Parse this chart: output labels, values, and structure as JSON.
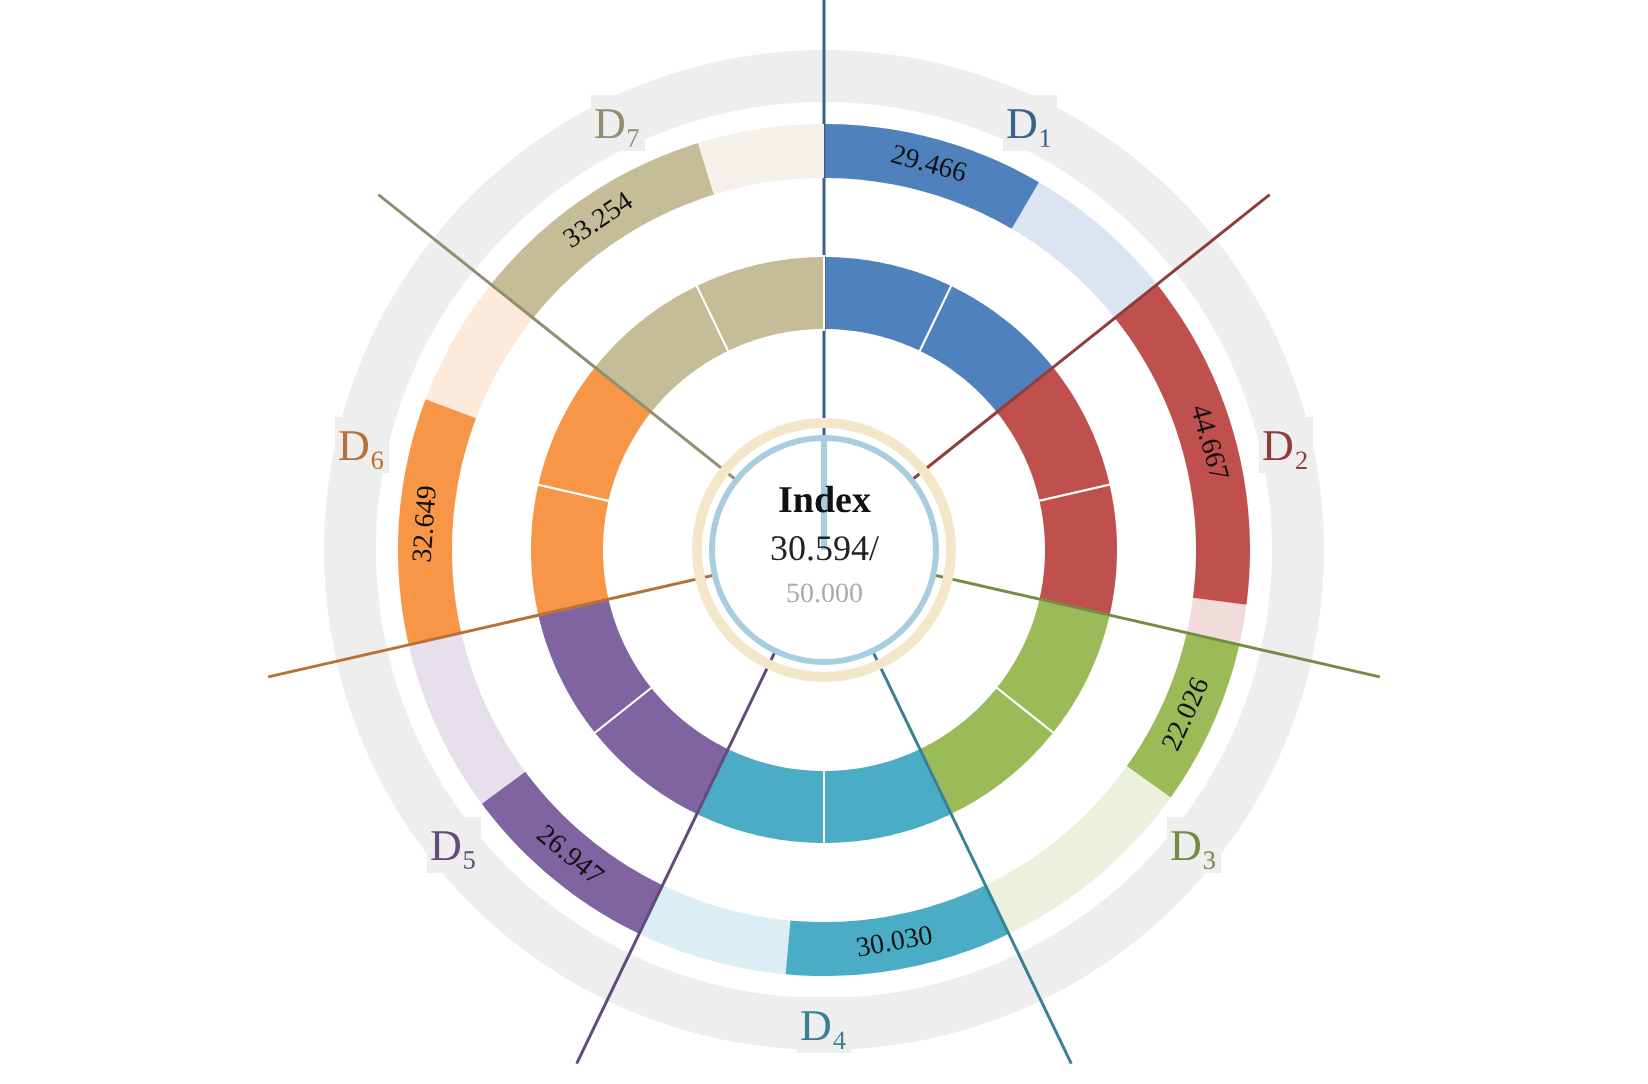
{
  "chart_data": {
    "type": "other",
    "title": "Index",
    "annotations": [
      "30.594/",
      "50.000"
    ],
    "categories": [
      "D₁",
      "D₂",
      "D₃",
      "D₄",
      "D₅",
      "D₆",
      "D₇"
    ],
    "values": [
      29.466,
      44.667,
      22.026,
      30.03,
      26.947,
      32.649,
      33.254
    ],
    "colors": [
      "#4f81bd",
      "#c0504d",
      "#9bbb59",
      "#4bacc6",
      "#8064a2",
      "#f79646",
      "#c4bd97"
    ],
    "value_labels": [
      "29.466",
      "44.667",
      "22.026",
      "30.030",
      "26.947",
      "32.649",
      "33.254"
    ]
  }
}
